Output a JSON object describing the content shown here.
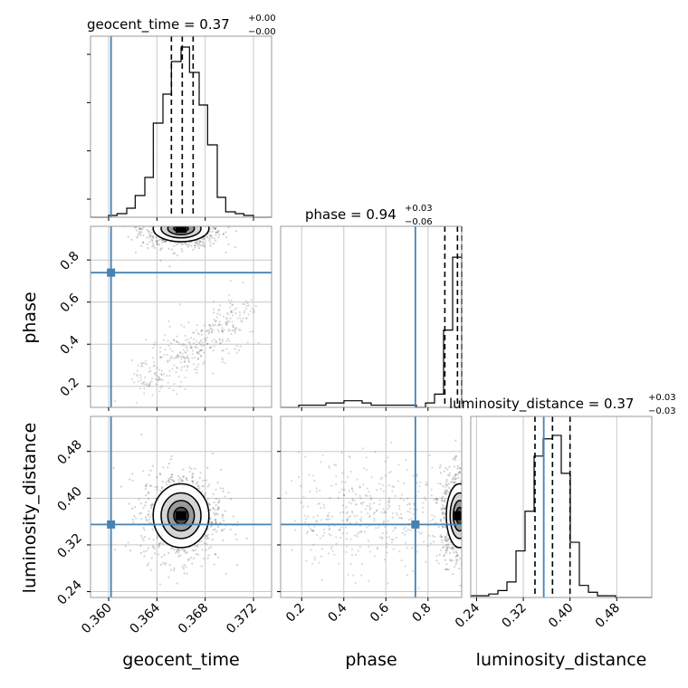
{
  "chart_data": {
    "type": "corner",
    "truth_color": "#4682b4",
    "parameters": [
      {
        "name": "geocent_time",
        "xlabel": "geocent_time",
        "title_text": "geocent_time = 0.37",
        "err_up": "+0.00",
        "err_down": "−0.00",
        "range": [
          0.3585,
          0.3735
        ],
        "ticks": [
          0.36,
          0.364,
          0.368,
          0.372
        ],
        "tick_labels": [
          "0.360",
          "0.364",
          "0.368",
          "0.372"
        ],
        "truth": 0.3602,
        "quantiles": [
          0.3652,
          0.3661,
          0.367
        ],
        "hist_bins": [
          0.3585,
          0.3592,
          0.36,
          0.3607,
          0.3615,
          0.3622,
          0.363,
          0.3637,
          0.3645,
          0.3652,
          0.366,
          0.3667,
          0.3675,
          0.3682,
          0.369,
          0.3697,
          0.3705,
          0.3712,
          0.372,
          0.3727,
          0.3735
        ],
        "hist_counts": [
          0,
          0,
          0.01,
          0.02,
          0.05,
          0.12,
          0.22,
          0.52,
          0.68,
          0.86,
          0.94,
          0.8,
          0.62,
          0.4,
          0.11,
          0.03,
          0.02,
          0.01,
          0,
          0
        ],
        "hist_max": 1.0
      },
      {
        "name": "phase",
        "xlabel": "phase",
        "ylabel": "phase",
        "title_text": "phase = 0.94",
        "err_up": "+0.03",
        "err_down": "−0.06",
        "range": [
          0.1,
          0.96
        ],
        "ticks": [
          0.2,
          0.4,
          0.6,
          0.8
        ],
        "tick_labels": [
          "0.2",
          "0.4",
          "0.6",
          "0.8"
        ],
        "truth": 0.74,
        "quantiles": [
          0.88,
          0.94,
          0.96
        ],
        "hist_bins": [
          0.1,
          0.143,
          0.186,
          0.229,
          0.272,
          0.315,
          0.358,
          0.401,
          0.444,
          0.487,
          0.53,
          0.573,
          0.616,
          0.659,
          0.702,
          0.745,
          0.788,
          0.831,
          0.874,
          0.917,
          0.96
        ],
        "hist_counts": [
          0,
          0,
          0.01,
          0.01,
          0.01,
          0.02,
          0.02,
          0.03,
          0.03,
          0.02,
          0.01,
          0.01,
          0.01,
          0.01,
          0.01,
          0,
          0.02,
          0.06,
          0.35,
          0.68
        ],
        "hist_max": 0.82
      },
      {
        "name": "luminosity_distance",
        "xlabel": "luminosity_distance",
        "ylabel": "luminosity_distance",
        "title_text": "luminosity_distance = 0.37",
        "err_up": "+0.03",
        "err_down": "−0.03",
        "range": [
          0.23,
          0.54
        ],
        "ticks": [
          0.24,
          0.32,
          0.4,
          0.48
        ],
        "tick_labels": [
          "0.24",
          "0.32",
          "0.40",
          "0.48"
        ],
        "truth": 0.355,
        "quantiles": [
          0.34,
          0.37,
          0.4
        ],
        "hist_bins": [
          0.23,
          0.2455,
          0.261,
          0.2765,
          0.292,
          0.3075,
          0.323,
          0.3385,
          0.354,
          0.3695,
          0.385,
          0.4005,
          0.416,
          0.4315,
          0.447,
          0.4625,
          0.478,
          0.4935,
          0.509,
          0.5245,
          0.54
        ],
        "hist_counts": [
          0.01,
          0.01,
          0.02,
          0.04,
          0.09,
          0.27,
          0.5,
          0.82,
          0.92,
          0.94,
          0.72,
          0.32,
          0.07,
          0.03,
          0.01,
          0.01,
          0,
          0,
          0,
          0
        ],
        "hist_max": 1.05
      }
    ],
    "pairs": [
      {
        "x": "geocent_time",
        "y": "phase",
        "mean": [
          0.366,
          0.95
        ],
        "sd": [
          0.0011,
          0.03
        ],
        "tail": {
          "from": [
            0.363,
            0.22
          ],
          "to": [
            0.3712,
            0.55
          ],
          "spread": [
            0.001,
            0.06
          ]
        }
      },
      {
        "x": "geocent_time",
        "y": "luminosity_distance",
        "mean": [
          0.366,
          0.37
        ],
        "sd": [
          0.0011,
          0.026
        ]
      },
      {
        "x": "phase",
        "y": "luminosity_distance",
        "mean": [
          0.95,
          0.37
        ],
        "sd": [
          0.03,
          0.026
        ],
        "tail": {
          "from": [
            0.2,
            0.37
          ],
          "to": [
            0.8,
            0.37
          ],
          "spread": [
            0.06,
            0.045
          ]
        }
      }
    ]
  }
}
